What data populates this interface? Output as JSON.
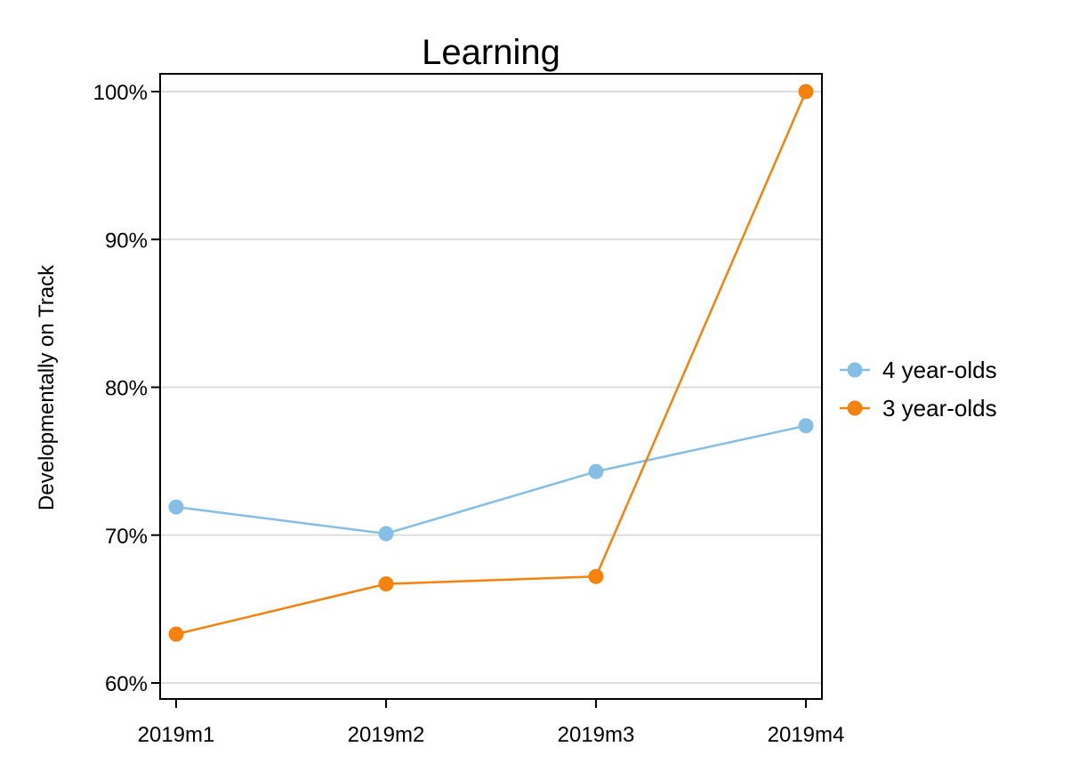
{
  "chart_data": {
    "type": "line",
    "title": "Learning",
    "xlabel": "",
    "ylabel": "Developmentally on Track",
    "categories": [
      "2019m1",
      "2019m2",
      "2019m3",
      "2019m4"
    ],
    "yticks": [
      {
        "value": 0.6,
        "label": "60%"
      },
      {
        "value": 0.7,
        "label": "70%"
      },
      {
        "value": 0.8,
        "label": "80%"
      },
      {
        "value": 0.9,
        "label": "90%"
      },
      {
        "value": 1.0,
        "label": "100%"
      }
    ],
    "ylim": [
      0.59,
      1.0
    ],
    "grid": true,
    "legend_position": "right",
    "series": [
      {
        "name": "4 year-olds",
        "color": "#85bfe6",
        "values": [
          0.719,
          0.701,
          0.743,
          0.774
        ]
      },
      {
        "name": "3 year-olds",
        "color": "#f5820c",
        "values": [
          0.633,
          0.667,
          0.672,
          1.0
        ]
      }
    ]
  }
}
